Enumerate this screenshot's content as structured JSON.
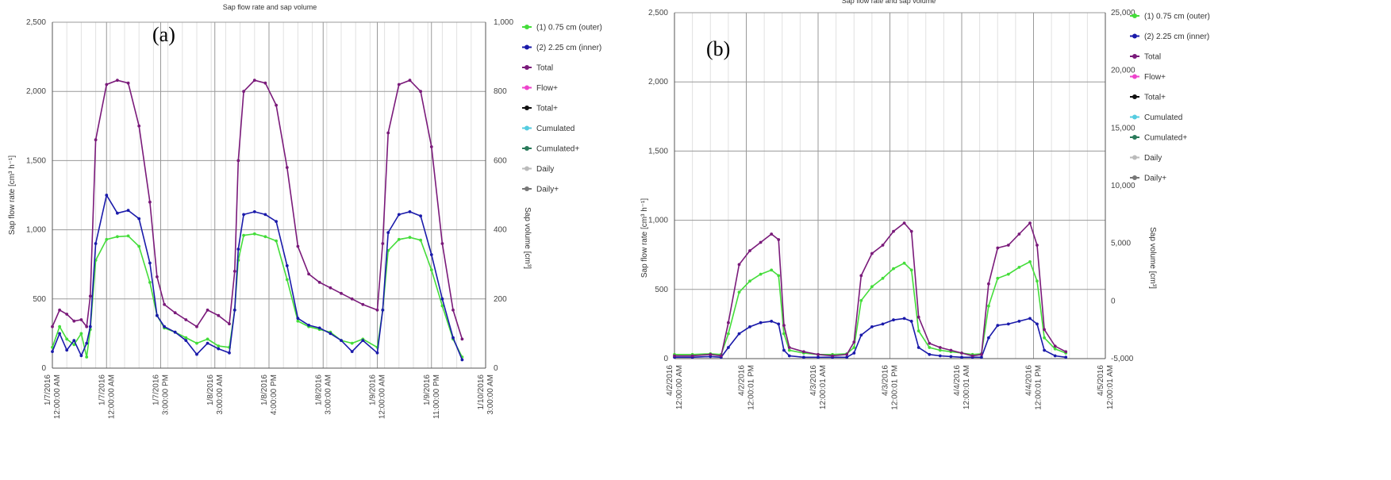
{
  "chart_data": [
    {
      "type": "line",
      "panel_label": "(a)",
      "title": "Sap flow rate and sap volume",
      "ylabel": "Sap flow rate [cm³ h⁻¹]",
      "y2label": "Sap volume [cm³]",
      "ylim": [
        0,
        2500
      ],
      "y_ticks": [
        0,
        500,
        1000,
        1500,
        2000,
        2500
      ],
      "y_tick_labels": [
        "0",
        "500",
        "1,000",
        "1,500",
        "2,000",
        "2,500"
      ],
      "y2lim": [
        0,
        1000
      ],
      "y2_ticks": [
        0,
        200,
        400,
        600,
        800,
        1000
      ],
      "y2_tick_labels": [
        "0",
        "200",
        "400",
        "600",
        "800",
        "1,000"
      ],
      "x_range": [
        0,
        12
      ],
      "x_tick_positions": [
        0,
        1.5,
        3,
        4.5,
        6,
        7.5,
        9,
        10.5,
        12
      ],
      "x_tick_labels": [
        [
          "1/7/2016",
          "12:00:00 AM"
        ],
        [
          "1/7/2016",
          "12:00:00 AM"
        ],
        [
          "1/7/2016",
          "3:00:00 PM"
        ],
        [
          "1/8/2016",
          "3:00:00 AM"
        ],
        [
          "1/8/2016",
          "4:00:00 PM"
        ],
        [
          "1/8/2016",
          "3:00:00 AM"
        ],
        [
          "1/9/2016",
          "12:00:00 AM"
        ],
        [
          "1/9/2016",
          "11:00:00 PM"
        ],
        [
          "1/10/2016",
          "3:00:00 AM"
        ]
      ],
      "grid": true,
      "legend_position": "right",
      "series": [
        {
          "name": "(1) 0.75 cm (outer)",
          "color": "#44dd3a",
          "x": [
            0,
            0.2,
            0.4,
            0.6,
            0.8,
            0.95,
            1.05,
            1.2,
            1.5,
            1.8,
            2.1,
            2.4,
            2.7,
            2.9,
            3.1,
            3.4,
            3.7,
            4.0,
            4.3,
            4.6,
            4.9,
            5.05,
            5.15,
            5.3,
            5.6,
            5.9,
            6.2,
            6.5,
            6.8,
            7.1,
            7.4,
            7.7,
            8.0,
            8.3,
            8.6,
            9.0,
            9.15,
            9.3,
            9.6,
            9.9,
            10.2,
            10.5,
            10.8,
            11.1,
            11.35
          ],
          "values": [
            150,
            300,
            210,
            170,
            250,
            80,
            280,
            780,
            930,
            950,
            955,
            880,
            620,
            380,
            290,
            260,
            220,
            180,
            210,
            160,
            150,
            420,
            780,
            960,
            970,
            950,
            920,
            640,
            340,
            300,
            280,
            260,
            200,
            180,
            210,
            150,
            420,
            850,
            930,
            945,
            925,
            710,
            450,
            210,
            80
          ]
        },
        {
          "name": "(2) 2.25 cm (inner)",
          "color": "#1a1aaa",
          "x": [
            0,
            0.2,
            0.4,
            0.6,
            0.8,
            0.95,
            1.05,
            1.2,
            1.5,
            1.8,
            2.1,
            2.4,
            2.7,
            2.9,
            3.1,
            3.4,
            3.7,
            4.0,
            4.3,
            4.6,
            4.9,
            5.05,
            5.15,
            5.3,
            5.6,
            5.9,
            6.2,
            6.5,
            6.8,
            7.1,
            7.4,
            7.7,
            8.0,
            8.3,
            8.6,
            9.0,
            9.15,
            9.3,
            9.6,
            9.9,
            10.2,
            10.5,
            10.8,
            11.1,
            11.35
          ],
          "values": [
            120,
            250,
            130,
            200,
            90,
            180,
            300,
            900,
            1250,
            1120,
            1140,
            1080,
            760,
            380,
            300,
            260,
            200,
            100,
            180,
            140,
            110,
            420,
            860,
            1110,
            1130,
            1110,
            1060,
            740,
            360,
            310,
            290,
            250,
            200,
            120,
            200,
            110,
            420,
            980,
            1110,
            1130,
            1100,
            820,
            500,
            220,
            60
          ]
        },
        {
          "name": "Total",
          "color": "#7a1a7a",
          "x": [
            0,
            0.2,
            0.4,
            0.6,
            0.8,
            0.95,
            1.05,
            1.2,
            1.5,
            1.8,
            2.1,
            2.4,
            2.7,
            2.9,
            3.1,
            3.4,
            3.7,
            4.0,
            4.3,
            4.6,
            4.9,
            5.05,
            5.15,
            5.3,
            5.6,
            5.9,
            6.2,
            6.5,
            6.8,
            7.1,
            7.4,
            7.7,
            8.0,
            8.3,
            8.6,
            9.0,
            9.15,
            9.3,
            9.6,
            9.9,
            10.2,
            10.5,
            10.8,
            11.1,
            11.35
          ],
          "values": [
            300,
            420,
            390,
            340,
            350,
            300,
            520,
            1650,
            2050,
            2080,
            2060,
            1750,
            1200,
            660,
            460,
            400,
            350,
            300,
            420,
            380,
            320,
            700,
            1500,
            2000,
            2080,
            2060,
            1900,
            1450,
            880,
            680,
            620,
            580,
            540,
            500,
            460,
            420,
            900,
            1700,
            2050,
            2080,
            2000,
            1600,
            900,
            420,
            210
          ]
        },
        {
          "name": "Flow+",
          "color": "#ee44cc",
          "x": [],
          "values": []
        },
        {
          "name": "Total+",
          "color": "#111111",
          "x": [],
          "values": []
        },
        {
          "name": "Cumulated",
          "color": "#55cce0",
          "x": [],
          "values": []
        },
        {
          "name": "Cumulated+",
          "color": "#2a7a5a",
          "x": [],
          "values": []
        },
        {
          "name": "Daily",
          "color": "#bbbbbb",
          "x": [],
          "values": []
        },
        {
          "name": "Daily+",
          "color": "#777777",
          "x": [],
          "values": []
        }
      ]
    },
    {
      "type": "line",
      "panel_label": "(b)",
      "title": "Sap flow rate and sap volume",
      "ylabel": "Sap flow rate [cm³ h⁻¹]",
      "y2label": "Sap volume [cm³]",
      "ylim": [
        0,
        2500
      ],
      "y_ticks": [
        0,
        500,
        1000,
        1500,
        2000,
        2500
      ],
      "y_tick_labels": [
        "0",
        "500",
        "1,000",
        "1,500",
        "2,000",
        "2,500"
      ],
      "y2lim": [
        -5000,
        25000
      ],
      "y2_ticks": [
        -5000,
        0,
        5000,
        10000,
        15000,
        20000,
        25000
      ],
      "y2_tick_labels": [
        "-5,000",
        "0",
        "5,000",
        "10,000",
        "15,000",
        "20,000",
        "25,000"
      ],
      "x_range": [
        0,
        12
      ],
      "x_tick_positions": [
        0,
        2,
        4,
        6,
        8,
        10,
        12
      ],
      "x_tick_labels": [
        [
          "4/2/2016",
          "12:00:00 AM"
        ],
        [
          "4/2/2016",
          "12:00:01 PM"
        ],
        [
          "4/3/2016",
          "12:00:01 AM"
        ],
        [
          "4/3/2016",
          "12:00:01 PM"
        ],
        [
          "4/4/2016",
          "12:00:01 AM"
        ],
        [
          "4/4/2016",
          "12:00:01 PM"
        ],
        [
          "4/5/2016",
          "12:00:01 AM"
        ]
      ],
      "grid": true,
      "legend_position": "right",
      "series": [
        {
          "name": "(1) 0.75 cm (outer)",
          "color": "#44dd3a",
          "x": [
            0,
            0.5,
            1.0,
            1.3,
            1.5,
            1.8,
            2.1,
            2.4,
            2.7,
            2.9,
            3.05,
            3.2,
            3.6,
            4.0,
            4.4,
            4.8,
            5.0,
            5.2,
            5.5,
            5.8,
            6.1,
            6.4,
            6.6,
            6.8,
            7.1,
            7.4,
            7.7,
            8.0,
            8.3,
            8.55,
            8.75,
            9.0,
            9.3,
            9.6,
            9.9,
            10.1,
            10.3,
            10.6,
            10.9
          ],
          "values": [
            30,
            30,
            35,
            30,
            180,
            480,
            560,
            610,
            640,
            600,
            180,
            60,
            40,
            30,
            30,
            35,
            80,
            420,
            520,
            580,
            650,
            690,
            640,
            200,
            80,
            60,
            50,
            40,
            30,
            35,
            380,
            580,
            610,
            660,
            700,
            560,
            150,
            70,
            40
          ]
        },
        {
          "name": "(2) 2.25 cm (inner)",
          "color": "#1a1aaa",
          "x": [
            0,
            0.5,
            1.0,
            1.3,
            1.5,
            1.8,
            2.1,
            2.4,
            2.7,
            2.9,
            3.05,
            3.2,
            3.6,
            4.0,
            4.4,
            4.8,
            5.0,
            5.2,
            5.5,
            5.8,
            6.1,
            6.4,
            6.6,
            6.8,
            7.1,
            7.4,
            7.7,
            8.0,
            8.3,
            8.55,
            8.75,
            9.0,
            9.3,
            9.6,
            9.9,
            10.1,
            10.3,
            10.6,
            10.9
          ],
          "values": [
            10,
            10,
            15,
            10,
            80,
            180,
            230,
            260,
            270,
            250,
            60,
            20,
            10,
            10,
            10,
            10,
            40,
            170,
            230,
            250,
            280,
            290,
            270,
            80,
            30,
            20,
            15,
            10,
            10,
            10,
            150,
            240,
            250,
            270,
            290,
            250,
            60,
            20,
            10
          ]
        },
        {
          "name": "Total",
          "color": "#7a1a7a",
          "x": [
            0,
            0.5,
            1.0,
            1.3,
            1.5,
            1.8,
            2.1,
            2.4,
            2.7,
            2.9,
            3.05,
            3.2,
            3.6,
            4.0,
            4.4,
            4.8,
            5.0,
            5.2,
            5.5,
            5.8,
            6.1,
            6.4,
            6.6,
            6.8,
            7.1,
            7.4,
            7.7,
            8.0,
            8.3,
            8.55,
            8.75,
            9.0,
            9.3,
            9.6,
            9.9,
            10.1,
            10.3,
            10.6,
            10.9
          ],
          "values": [
            20,
            20,
            30,
            20,
            260,
            680,
            780,
            840,
            900,
            860,
            240,
            80,
            50,
            30,
            20,
            30,
            120,
            600,
            760,
            820,
            920,
            980,
            920,
            300,
            110,
            80,
            60,
            40,
            20,
            30,
            540,
            800,
            820,
            900,
            980,
            820,
            210,
            90,
            50
          ]
        },
        {
          "name": "Flow+",
          "color": "#ee44cc",
          "x": [],
          "values": []
        },
        {
          "name": "Total+",
          "color": "#111111",
          "x": [],
          "values": []
        },
        {
          "name": "Cumulated",
          "color": "#55cce0",
          "x": [],
          "values": []
        },
        {
          "name": "Cumulated+",
          "color": "#2a7a5a",
          "x": [],
          "values": []
        },
        {
          "name": "Daily",
          "color": "#bbbbbb",
          "x": [],
          "values": []
        },
        {
          "name": "Daily+",
          "color": "#777777",
          "x": [],
          "values": []
        }
      ]
    }
  ]
}
